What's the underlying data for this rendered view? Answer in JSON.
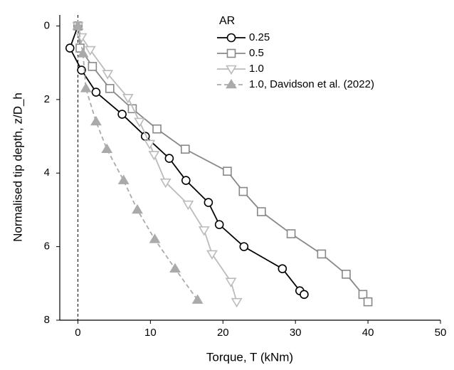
{
  "chart_data": {
    "type": "line",
    "xlabel": "Torque, T (kNm)",
    "ylabel": "Normalised tip depth, z/D_h",
    "xlim": [
      -2.5,
      50
    ],
    "xticks": [
      0,
      10,
      20,
      30,
      40,
      50
    ],
    "ylim": [
      -0.3,
      8
    ],
    "yticks": [
      0,
      2,
      4,
      6,
      8
    ],
    "y_inverted": true,
    "grid": false,
    "legend_title": "AR",
    "legend_position": "upper-center",
    "reference_lines": [
      {
        "x": 0,
        "linestyle": "dashed"
      }
    ],
    "series": [
      {
        "name": "0.25",
        "color": "#000000",
        "marker": "circle",
        "marker_fill": "#ffffff",
        "linestyle": "solid",
        "x": [
          0,
          -1.1,
          0.5,
          2.5,
          6.1,
          9.3,
          12.6,
          14.9,
          18,
          19.5,
          22.9,
          28.2,
          30.6,
          31.2
        ],
        "values": [
          0,
          0.6,
          1.2,
          1.8,
          2.4,
          3.0,
          3.6,
          4.2,
          4.8,
          5.4,
          6.0,
          6.6,
          7.2,
          7.3
        ]
      },
      {
        "name": "0.5",
        "color": "#888888",
        "marker": "square",
        "marker_fill": "#ffffff",
        "linestyle": "solid",
        "x": [
          0,
          0.3,
          2,
          4.4,
          7.5,
          10.9,
          14.8,
          20.6,
          22.8,
          25.3,
          29.4,
          33.6,
          37,
          39.3,
          40
        ],
        "values": [
          0,
          0.6,
          1.1,
          1.7,
          2.25,
          2.8,
          3.35,
          3.95,
          4.5,
          5.05,
          5.65,
          6.2,
          6.75,
          7.3,
          7.5
        ]
      },
      {
        "name": "1.0",
        "color": "#bbbbbb",
        "marker": "triangle-down",
        "marker_fill": "#ffffff",
        "linestyle": "solid",
        "x": [
          0,
          0.5,
          1.7,
          4.1,
          6.9,
          8.5,
          9.9,
          10.5,
          12.1,
          15.2,
          17.4,
          18.5,
          21.1,
          21.9
        ],
        "values": [
          0,
          0.3,
          0.65,
          1.3,
          1.95,
          2.6,
          3.2,
          3.5,
          4.25,
          4.85,
          5.55,
          6.2,
          6.95,
          7.5
        ]
      },
      {
        "name": "1.0, Davidson et al. (2022)",
        "color": "#aaaaaa",
        "marker": "triangle-up",
        "marker_fill": "#aaaaaa",
        "linestyle": "dashed",
        "x": [
          0,
          0.7,
          1.1,
          2.5,
          4,
          6.3,
          8.2,
          10.6,
          13.4,
          16.5
        ],
        "values": [
          0,
          0.75,
          1.7,
          2.6,
          3.35,
          4.2,
          5.0,
          5.8,
          6.6,
          7.45
        ]
      }
    ]
  }
}
